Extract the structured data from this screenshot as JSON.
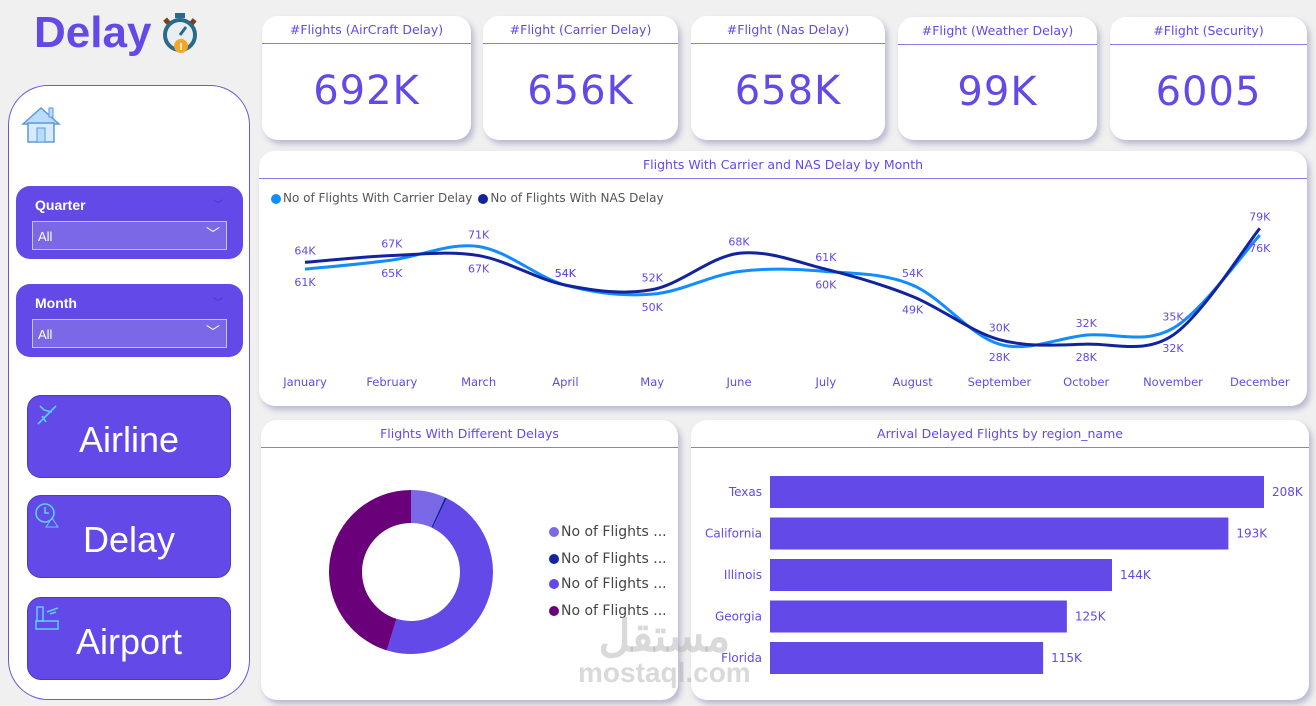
{
  "header": {
    "title": "Delay",
    "icon": "stopwatch-warning-icon"
  },
  "sidebar": {
    "home_icon": "home-icon",
    "slicers": [
      {
        "label": "Quarter",
        "value": "All"
      },
      {
        "label": "Month",
        "value": "All"
      }
    ],
    "nav": [
      {
        "label": "Airline",
        "icon": "airplane-icon"
      },
      {
        "label": "Delay",
        "icon": "clock-warning-icon"
      },
      {
        "label": "Airport",
        "icon": "airport-tower-icon"
      }
    ]
  },
  "kpis": [
    {
      "title": "#Flights (AirCraft Delay)",
      "value": "692K"
    },
    {
      "title": "#Flight (Carrier Delay)",
      "value": "656K"
    },
    {
      "title": "#Flight (Nas Delay)",
      "value": "658K"
    },
    {
      "title": "#Flight (Weather Delay)",
      "value": "99K"
    },
    {
      "title": "#Flight (Security)",
      "value": "6005"
    }
  ],
  "colors": {
    "accent": "#6249e8",
    "carrier": "#118dff",
    "nas": "#12239e",
    "donut": [
      "#7b68e6",
      "#12239e",
      "#6249e8",
      "#6b007b"
    ]
  },
  "chart_data": [
    {
      "type": "line",
      "title": "Flights With Carrier and NAS Delay by Month",
      "categories": [
        "January",
        "February",
        "March",
        "April",
        "May",
        "June",
        "July",
        "August",
        "September",
        "October",
        "November",
        "December"
      ],
      "series": [
        {
          "name": "No of Flights With Carrier Delay",
          "values": [
            61,
            65,
            71,
            54,
            50,
            60,
            60,
            54,
            28,
            32,
            35,
            76
          ],
          "labels": [
            "61K",
            "65K",
            "71K",
            "54K",
            "50K",
            "",
            "60K",
            "54K",
            "28K",
            "32K",
            "35K",
            "76K"
          ]
        },
        {
          "name": "No of Flights With NAS Delay",
          "values": [
            64,
            67,
            67,
            54,
            52,
            68,
            61,
            49,
            30,
            28,
            32,
            79
          ],
          "labels": [
            "64K",
            "67K",
            "67K",
            "54K",
            "52K",
            "68K",
            "61K",
            "49K",
            "30K",
            "28K",
            "32K",
            "79K"
          ]
        }
      ],
      "unit": "K",
      "legend": "top-left",
      "grid": false
    },
    {
      "type": "pie",
      "title": "Flights With Different Delays",
      "legend": "right",
      "slices": [
        {
          "name": "No of Flights ...",
          "value": 99
        },
        {
          "name": "No of Flights ...",
          "value": 6
        },
        {
          "name": "No of Flights ...",
          "value": 692
        },
        {
          "name": "No of Flights ...",
          "value": 658
        }
      ]
    },
    {
      "type": "bar",
      "orientation": "horizontal",
      "title": "Arrival Delayed Flights by region_name",
      "categories": [
        "Texas",
        "California",
        "Illinois",
        "Georgia",
        "Florida"
      ],
      "values": [
        208,
        193,
        144,
        125,
        115
      ],
      "labels": [
        "208K",
        "193K",
        "144K",
        "125K",
        "115K"
      ]
    }
  ],
  "watermark": {
    "line1": "مستقل",
    "line2": "mostaql.com"
  }
}
